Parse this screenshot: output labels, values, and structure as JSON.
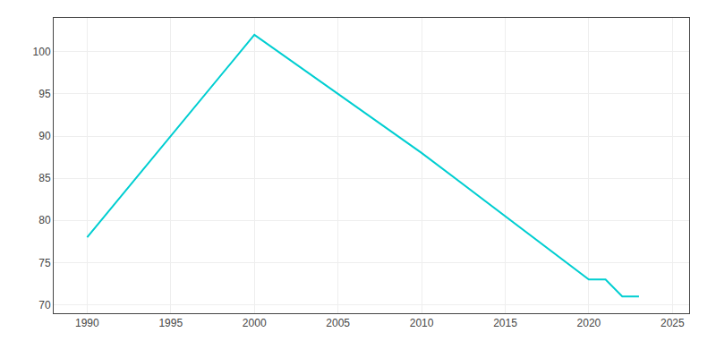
{
  "chart_data": {
    "type": "line",
    "x": [
      1990,
      2000,
      2010,
      2020,
      2021,
      2022,
      2023
    ],
    "values": [
      78,
      102,
      88,
      73,
      73,
      71,
      71
    ],
    "color": "#00CED1",
    "xlim": [
      1988,
      2026
    ],
    "ylim": [
      69,
      104
    ],
    "xticks": [
      1990,
      1995,
      2000,
      2005,
      2010,
      2015,
      2020,
      2025
    ],
    "yticks": [
      70,
      75,
      80,
      85,
      90,
      95,
      100
    ],
    "grid": true
  }
}
